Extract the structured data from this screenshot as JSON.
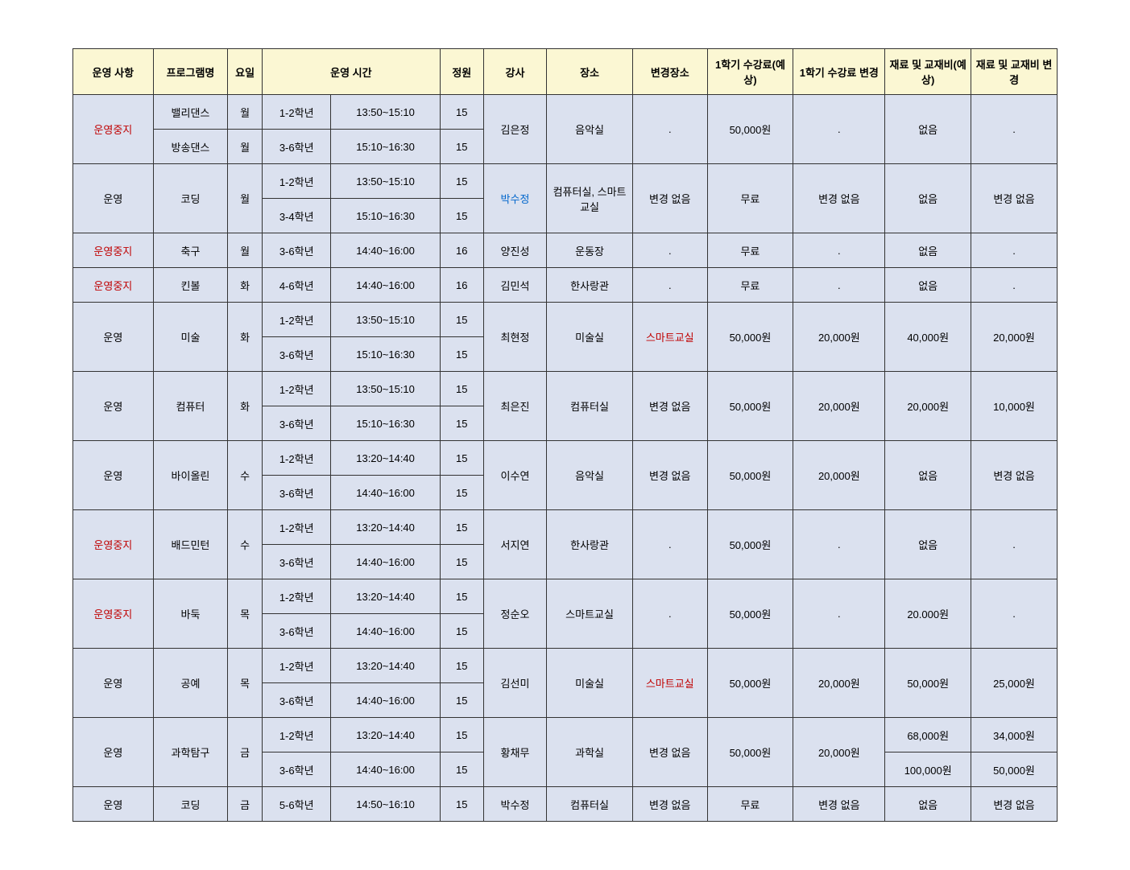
{
  "headers": {
    "status": "운영 사항",
    "program": "프로그램명",
    "day": "요일",
    "time": "운영 시간",
    "capacity": "정원",
    "teacher": "강사",
    "place": "장소",
    "change_place": "변경장소",
    "fee1": "1학기 수강료(예상)",
    "fee_change": "1학기 수강료 변경",
    "material": "재료 및 교재비(예상)",
    "material_change": "재료 및 교재비 변경"
  },
  "status_labels": {
    "run": "운영",
    "stop": "운영중지"
  },
  "programs": [
    {
      "status": "stop",
      "name": "밸리댄스",
      "day": "월",
      "slots": [
        {
          "grade": "1-2학년",
          "time": "13:50~15:10",
          "cap": "15"
        }
      ],
      "teacher": "김은정",
      "teacher_color": "black",
      "place": "음악실",
      "change_place": ".",
      "change_place_color": "black",
      "fee1": "50,000원",
      "fee_change": ".",
      "material": "없음",
      "material_change": ".",
      "merge_with_next": true
    },
    {
      "status": "stop",
      "name": "방송댄스",
      "day": "월",
      "slots": [
        {
          "grade": "3-6학년",
          "time": "15:10~16:30",
          "cap": "15"
        }
      ],
      "merged": true
    },
    {
      "status": "run",
      "name": "코딩",
      "day": "월",
      "slots": [
        {
          "grade": "1-2학년",
          "time": "13:50~15:10",
          "cap": "15"
        },
        {
          "grade": "3-4학년",
          "time": "15:10~16:30",
          "cap": "15"
        }
      ],
      "teacher": "박수정",
      "teacher_color": "blue",
      "place": "컴퓨터실, 스마트교실",
      "change_place": "변경 없음",
      "change_place_color": "black",
      "fee1": "무료",
      "fee_change": "변경 없음",
      "material": "없음",
      "material_change": "변경 없음"
    },
    {
      "status": "stop",
      "name": "축구",
      "day": "월",
      "slots": [
        {
          "grade": "3-6학년",
          "time": "14:40~16:00",
          "cap": "16"
        }
      ],
      "teacher": "양진성",
      "teacher_color": "black",
      "place": "운동장",
      "change_place": ".",
      "change_place_color": "black",
      "fee1": "무료",
      "fee_change": ".",
      "material": "없음",
      "material_change": "."
    },
    {
      "status": "stop",
      "name": "킨볼",
      "day": "화",
      "slots": [
        {
          "grade": "4-6학년",
          "time": "14:40~16:00",
          "cap": "16"
        }
      ],
      "teacher": "김민석",
      "teacher_color": "black",
      "place": "한사랑관",
      "change_place": ".",
      "change_place_color": "black",
      "fee1": "무료",
      "fee_change": ".",
      "material": "없음",
      "material_change": "."
    },
    {
      "status": "run",
      "name": "미술",
      "day": "화",
      "slots": [
        {
          "grade": "1-2학년",
          "time": "13:50~15:10",
          "cap": "15"
        },
        {
          "grade": "3-6학년",
          "time": "15:10~16:30",
          "cap": "15"
        }
      ],
      "teacher": "최현정",
      "teacher_color": "black",
      "place": "미술실",
      "change_place": "스마트교실",
      "change_place_color": "red",
      "fee1": "50,000원",
      "fee_change": "20,000원",
      "material": "40,000원",
      "material_change": "20,000원"
    },
    {
      "status": "run",
      "name": "컴퓨터",
      "day": "화",
      "slots": [
        {
          "grade": "1-2학년",
          "time": "13:50~15:10",
          "cap": "15"
        },
        {
          "grade": "3-6학년",
          "time": "15:10~16:30",
          "cap": "15"
        }
      ],
      "teacher": "최은진",
      "teacher_color": "black",
      "place": "컴퓨터실",
      "change_place": "변경 없음",
      "change_place_color": "black",
      "fee1": "50,000원",
      "fee_change": "20,000원",
      "material": "20,000원",
      "material_change": "10,000원"
    },
    {
      "status": "run",
      "name": "바이올린",
      "day": "수",
      "slots": [
        {
          "grade": "1-2학년",
          "time": "13:20~14:40",
          "cap": "15"
        },
        {
          "grade": "3-6학년",
          "time": "14:40~16:00",
          "cap": "15"
        }
      ],
      "teacher": "이수연",
      "teacher_color": "black",
      "place": "음악실",
      "change_place": "변경 없음",
      "change_place_color": "black",
      "fee1": "50,000원",
      "fee_change": "20,000원",
      "material": "없음",
      "material_change": "변경 없음"
    },
    {
      "status": "stop",
      "name": "배드민턴",
      "day": "수",
      "slots": [
        {
          "grade": "1-2학년",
          "time": "13:20~14:40",
          "cap": "15"
        },
        {
          "grade": "3-6학년",
          "time": "14:40~16:00",
          "cap": "15"
        }
      ],
      "teacher": "서지연",
      "teacher_color": "black",
      "place": "한사랑관",
      "change_place": ".",
      "change_place_color": "black",
      "fee1": "50,000원",
      "fee_change": ".",
      "material": "없음",
      "material_change": "."
    },
    {
      "status": "stop",
      "name": "바둑",
      "day": "목",
      "slots": [
        {
          "grade": "1-2학년",
          "time": "13:20~14:40",
          "cap": "15"
        },
        {
          "grade": "3-6학년",
          "time": "14:40~16:00",
          "cap": "15"
        }
      ],
      "teacher": "정순오",
      "teacher_color": "black",
      "place": "스마트교실",
      "change_place": ".",
      "change_place_color": "black",
      "fee1": "50,000원",
      "fee_change": ".",
      "material": "20.000원",
      "material_change": "."
    },
    {
      "status": "run",
      "name": "공예",
      "day": "목",
      "slots": [
        {
          "grade": "1-2학년",
          "time": "13:20~14:40",
          "cap": "15"
        },
        {
          "grade": "3-6학년",
          "time": "14:40~16:00",
          "cap": "15"
        }
      ],
      "teacher": "김선미",
      "teacher_color": "black",
      "place": "미술실",
      "change_place": "스마트교실",
      "change_place_color": "red",
      "fee1": "50,000원",
      "fee_change": "20,000원",
      "material": "50,000원",
      "material_change": "25,000원"
    },
    {
      "status": "run",
      "name": "과학탐구",
      "day": "금",
      "slots": [
        {
          "grade": "1-2학년",
          "time": "13:20~14:40",
          "cap": "15"
        },
        {
          "grade": "3-6학년",
          "time": "14:40~16:00",
          "cap": "15"
        }
      ],
      "teacher": "황채무",
      "teacher_color": "black",
      "place": "과학실",
      "change_place": "변경 없음",
      "change_place_color": "black",
      "fee1": "50,000원",
      "fee_change": "20,000원",
      "material_per_slot": [
        "68,000원",
        "100,000원"
      ],
      "material_change_per_slot": [
        "34,000원",
        "50,000원"
      ]
    },
    {
      "status": "run",
      "name": "코딩",
      "day": "금",
      "slots": [
        {
          "grade": "5-6학년",
          "time": "14:50~16:10",
          "cap": "15"
        }
      ],
      "teacher": "박수정",
      "teacher_color": "black",
      "place": "컴퓨터실",
      "change_place": "변경 없음",
      "change_place_color": "black",
      "fee1": "무료",
      "fee_change": "변경 없음",
      "material": "없음",
      "material_change": "변경 없음"
    }
  ],
  "style": {
    "header_bg": "#fbf7d3",
    "body_bg": "#dbe1ef",
    "border_color": "#333333",
    "stop_color": "#c00000",
    "highlight_red": "#c00000",
    "teacher_blue": "#0066cc",
    "font_size": 13
  }
}
